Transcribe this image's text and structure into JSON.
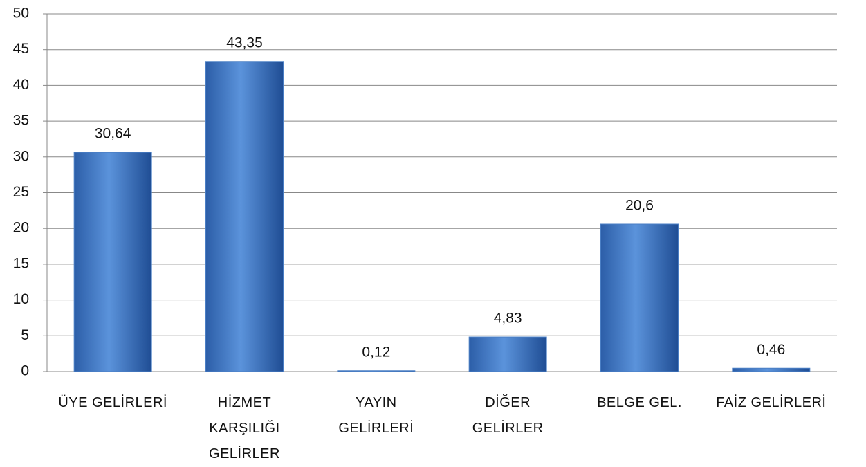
{
  "chart_data": {
    "type": "bar",
    "categories": [
      "ÜYE GELİRLERİ",
      "HİZMET\nKARŞILIĞI\nGELİRLER",
      "YAYIN\nGELİRLERİ",
      "DİĞER\nGELİRLER",
      "BELGE GEL.",
      "FAİZ GELİRLERİ"
    ],
    "values": [
      30.64,
      43.35,
      0.12,
      4.83,
      20.6,
      0.46
    ],
    "value_labels": [
      "30,64",
      "43,35",
      "0,12",
      "4,83",
      "20,6",
      "0,46"
    ],
    "color": "#4a7ec4",
    "ylim": [
      0,
      50
    ],
    "yticks": [
      0,
      5,
      10,
      15,
      20,
      25,
      30,
      35,
      40,
      45,
      50
    ],
    "grid": true
  }
}
